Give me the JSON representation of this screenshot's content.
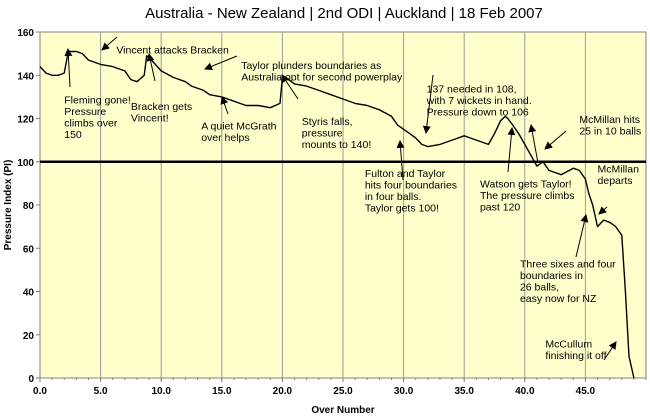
{
  "chart_data": {
    "type": "line",
    "title": "Australia - New Zealand | 2nd ODI  | Auckland | 18 Feb 2007",
    "xlabel": "Over Number",
    "ylabel": "Pressure Index (PI)",
    "xlim": [
      0,
      50
    ],
    "ylim": [
      0,
      160
    ],
    "x_ticks": [
      "0.0",
      "5.0",
      "10.0",
      "15.0",
      "20.0",
      "25.0",
      "30.0",
      "35.0",
      "40.0",
      "45.0"
    ],
    "y_ticks": [
      "0",
      "20",
      "40",
      "60",
      "80",
      "100",
      "120",
      "140",
      "160"
    ],
    "reference_line": 100,
    "grid": "vertical",
    "background_color": "#ffffcc",
    "line_color": "#000000",
    "series": [
      {
        "x": [
          0,
          0.5,
          1.0,
          1.5,
          2.0,
          2.3,
          2.4,
          3.0,
          3.5,
          4.0,
          5.0,
          6.0,
          7.0,
          7.5,
          8.0,
          8.6,
          8.8,
          9.2,
          10.0,
          11.0,
          12.0,
          12.5,
          13.5,
          14.0,
          15.0,
          16.0,
          16.5,
          17.0,
          18.0,
          19.0,
          19.8,
          20.0,
          20.5,
          21.0,
          22.0,
          23.0,
          24.0,
          25.0,
          26.0,
          27.0,
          28.0,
          29.0,
          29.5,
          30.0,
          30.5,
          31.0,
          31.5,
          32.0,
          33.0,
          34.0,
          35.0,
          36.0,
          37.0,
          37.5,
          38.0,
          38.4,
          38.6,
          39.0,
          39.5,
          40.0,
          40.3,
          40.7,
          41.0,
          41.5,
          42.0,
          43.0,
          44.0,
          44.5,
          45.0,
          45.3,
          45.6,
          46.0,
          46.5,
          47.0,
          47.5,
          48.0,
          48.3,
          48.6,
          49.0
        ],
        "y": [
          144,
          141,
          140,
          140,
          141,
          150,
          151,
          151,
          150,
          147,
          145,
          144,
          142,
          138,
          137,
          140,
          149,
          147,
          142,
          139,
          137,
          135,
          133,
          131,
          130,
          128,
          127,
          126,
          126,
          125,
          127,
          139,
          138,
          136,
          135,
          133,
          131,
          129,
          127,
          126,
          124,
          121,
          117,
          115,
          113,
          111,
          108,
          107,
          108,
          110,
          112,
          110,
          108,
          113,
          119,
          121,
          120,
          117,
          113,
          108,
          105,
          101,
          98,
          100,
          96,
          94,
          97,
          96,
          92,
          85,
          80,
          70,
          73,
          72,
          70,
          66,
          40,
          10,
          0
        ]
      }
    ],
    "annotations": [
      {
        "lines": [
          "Vincent attacks Bracken"
        ],
        "x": 6.3,
        "y": 150
      },
      {
        "lines": [
          "Fleming gone!",
          "Pressure",
          "climbs over",
          "150"
        ],
        "x": 2.0,
        "y": 127
      },
      {
        "lines": [
          "Bracken gets",
          "Vincent!"
        ],
        "x": 7.5,
        "y": 124
      },
      {
        "lines": [
          "Taylor plunders boundaries as",
          "Australia opt for second powerplay"
        ],
        "x": 16.6,
        "y": 143
      },
      {
        "lines": [
          "A quiet McGrath",
          "over helps"
        ],
        "x": 13.3,
        "y": 115
      },
      {
        "lines": [
          "Styris falls,",
          "pressure",
          "mounts to 140!"
        ],
        "x": 21.6,
        "y": 117
      },
      {
        "lines": [
          "137 needed in 108,",
          "with 7 wickets in hand.",
          "Pressure down to 106"
        ],
        "x": 31.9,
        "y": 132
      },
      {
        "lines": [
          "McMillan hits",
          "25 in 10 balls"
        ],
        "x": 44.5,
        "y": 118
      },
      {
        "lines": [
          "Fulton and Taylor",
          "hits four boundaries",
          "in four balls.",
          "Taylor gets 100!"
        ],
        "x": 26.8,
        "y": 93
      },
      {
        "lines": [
          "Watson gets Taylor!",
          "The pressure climbs",
          "past 120"
        ],
        "x": 36.3,
        "y": 88
      },
      {
        "lines": [
          "McMillan",
          "departs"
        ],
        "x": 46.0,
        "y": 95
      },
      {
        "lines": [
          "Three sixes and four",
          "boundaries in",
          "26 balls,",
          "easy now for NZ"
        ],
        "x": 39.6,
        "y": 51
      },
      {
        "lines": [
          "McCullum",
          "finishing it off"
        ],
        "x": 41.7,
        "y": 14
      }
    ]
  }
}
